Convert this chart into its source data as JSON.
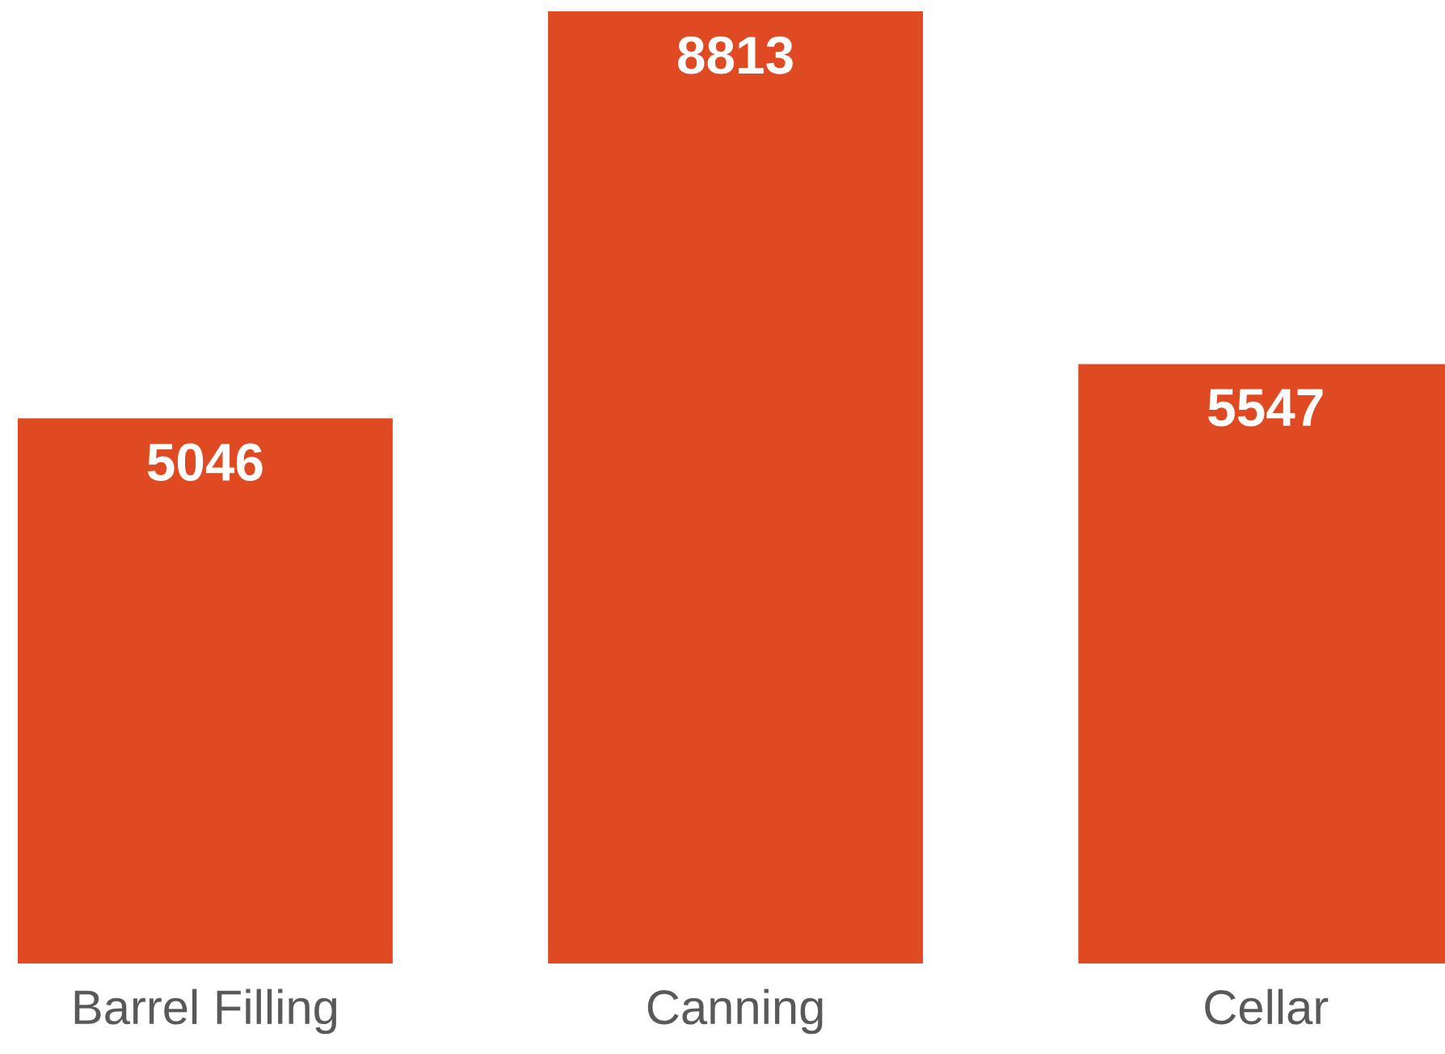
{
  "chart_data": {
    "type": "bar",
    "categories": [
      "Barrel Filling",
      "Canning",
      "Cellar"
    ],
    "values": [
      5046,
      8813,
      5547
    ],
    "color": "#e04a22",
    "data_labels": true
  }
}
